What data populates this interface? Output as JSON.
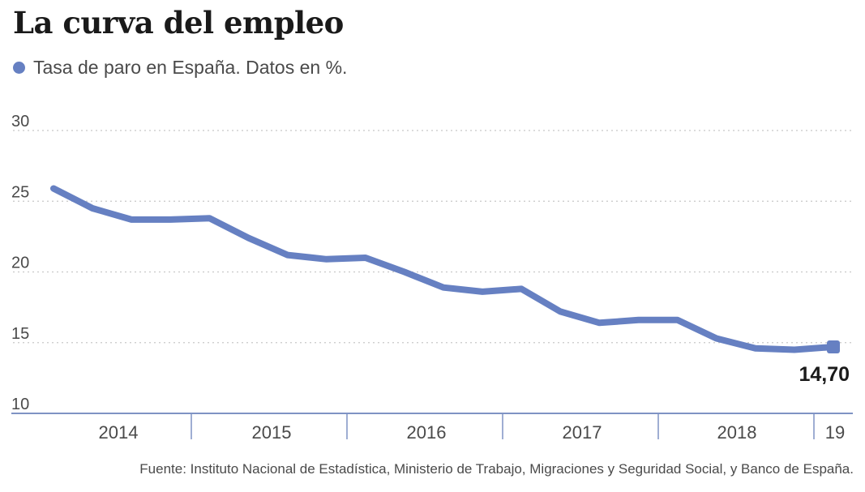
{
  "title": "La curva del empleo",
  "legend": {
    "label": "Tasa de paro en España. Datos en %."
  },
  "source": "Fuente:  Instituto Nacional de Estadística, Ministerio de Trabajo, Migraciones y Seguridad Social, y Banco de España.",
  "colors": {
    "series": "#6680c2",
    "grid": "#c8c8c8",
    "axis": "#7f93c4",
    "text": "#4a4a4a",
    "label": "#1a1a1a"
  },
  "chart_data": {
    "type": "line",
    "title": "La curva del empleo",
    "series": [
      {
        "name": "Tasa de paro en España. Datos en %.",
        "x": [
          "2014-Q1",
          "2014-Q2",
          "2014-Q3",
          "2014-Q4",
          "2015-Q1",
          "2015-Q2",
          "2015-Q3",
          "2015-Q4",
          "2016-Q1",
          "2016-Q2",
          "2016-Q3",
          "2016-Q4",
          "2017-Q1",
          "2017-Q2",
          "2017-Q3",
          "2017-Q4",
          "2018-Q1",
          "2018-Q2",
          "2018-Q3",
          "2018-Q4",
          "2019-Q1"
        ],
        "values": [
          25.9,
          24.5,
          23.7,
          23.7,
          23.8,
          22.4,
          21.2,
          20.9,
          21.0,
          20.0,
          18.9,
          18.6,
          18.8,
          17.2,
          16.4,
          16.6,
          16.6,
          15.3,
          14.6,
          14.5,
          14.7
        ]
      }
    ],
    "x_tick_labels": [
      "2014",
      "2015",
      "2016",
      "2017",
      "2018",
      "19"
    ],
    "y_ticks": [
      "10",
      "15",
      "20",
      "25",
      "30"
    ],
    "ylim": [
      10,
      30
    ],
    "grid": true,
    "annotations": [
      {
        "text": "14,70"
      }
    ]
  }
}
